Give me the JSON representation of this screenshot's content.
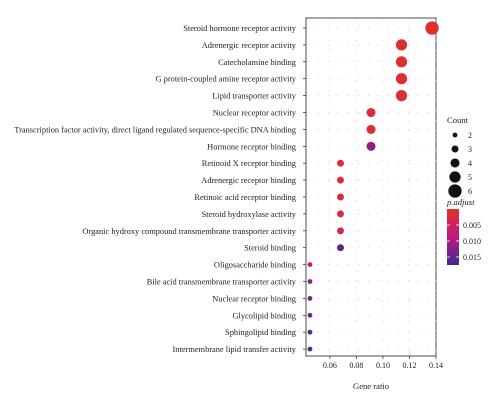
{
  "chart_data": {
    "type": "scatter",
    "xlabel": "Gene ratio",
    "ylabel": "",
    "xlim": [
      0.042,
      0.14
    ],
    "x_ticks": [
      0.06,
      0.08,
      0.1,
      0.12,
      0.14
    ],
    "x_tick_labels": [
      "0.06",
      "0.08",
      "0.10",
      "0.12",
      "0.14"
    ],
    "grid": true,
    "categories": [
      "Steroid hormone receptor activity",
      "Adrenergic receptor activity",
      "Catecholamine binding",
      "G protein-coupled amine receptor activity",
      "Lipid transporter activity",
      "Nuclear receptor activity",
      "Transcription factor activity, direct ligand regulated sequence-specific DNA binding",
      "Hormone receptor binding",
      "Retinoid X receptor binding",
      "Adrenergic receptor binding",
      "Retinoic acid receptor binding",
      "Steroid hydroxylase activity",
      "Organic hydroxy compound transmembrane transporter activity",
      "Steroid binding",
      "Oligosaccharide binding",
      "Bile acid transmembrane transporter activity",
      "Nuclear receptor binding",
      "Glycolipid binding",
      "Sphingolipid binding",
      "Intermembrane lipid transfer activity"
    ],
    "points": [
      {
        "gene_ratio": 0.137,
        "count": 6,
        "p_adjust": 0.0003
      },
      {
        "gene_ratio": 0.114,
        "count": 5,
        "p_adjust": 0.0008
      },
      {
        "gene_ratio": 0.114,
        "count": 5,
        "p_adjust": 0.0008
      },
      {
        "gene_ratio": 0.114,
        "count": 5,
        "p_adjust": 0.0012
      },
      {
        "gene_ratio": 0.114,
        "count": 5,
        "p_adjust": 0.0012
      },
      {
        "gene_ratio": 0.091,
        "count": 4,
        "p_adjust": 0.0015
      },
      {
        "gene_ratio": 0.091,
        "count": 4,
        "p_adjust": 0.0015
      },
      {
        "gene_ratio": 0.091,
        "count": 4,
        "p_adjust": 0.0118
      },
      {
        "gene_ratio": 0.068,
        "count": 3,
        "p_adjust": 0.0018
      },
      {
        "gene_ratio": 0.068,
        "count": 3,
        "p_adjust": 0.002
      },
      {
        "gene_ratio": 0.068,
        "count": 3,
        "p_adjust": 0.0022
      },
      {
        "gene_ratio": 0.068,
        "count": 3,
        "p_adjust": 0.0025
      },
      {
        "gene_ratio": 0.068,
        "count": 3,
        "p_adjust": 0.003
      },
      {
        "gene_ratio": 0.068,
        "count": 3,
        "p_adjust": 0.0155
      },
      {
        "gene_ratio": 0.045,
        "count": 2,
        "p_adjust": 0.0088
      },
      {
        "gene_ratio": 0.045,
        "count": 2,
        "p_adjust": 0.0128
      },
      {
        "gene_ratio": 0.045,
        "count": 2,
        "p_adjust": 0.0138
      },
      {
        "gene_ratio": 0.045,
        "count": 2,
        "p_adjust": 0.0145
      },
      {
        "gene_ratio": 0.045,
        "count": 2,
        "p_adjust": 0.0155
      },
      {
        "gene_ratio": 0.045,
        "count": 2,
        "p_adjust": 0.016
      }
    ],
    "legend": {
      "placement": "right",
      "size_title": "Count",
      "size_values": [
        2,
        3,
        4,
        5,
        6
      ],
      "size_labels": [
        "2",
        "3",
        "4",
        "5",
        "6"
      ],
      "color_title": "p.adjust",
      "color_ticks": [
        0.005,
        0.01,
        0.015
      ],
      "color_tick_labels": [
        "0.005",
        "0.010",
        "0.015"
      ],
      "color_range": [
        0.0,
        0.0175
      ],
      "color_low": "#e0312b",
      "color_mid": "#c2187f",
      "color_high": "#3a2c8f"
    }
  }
}
